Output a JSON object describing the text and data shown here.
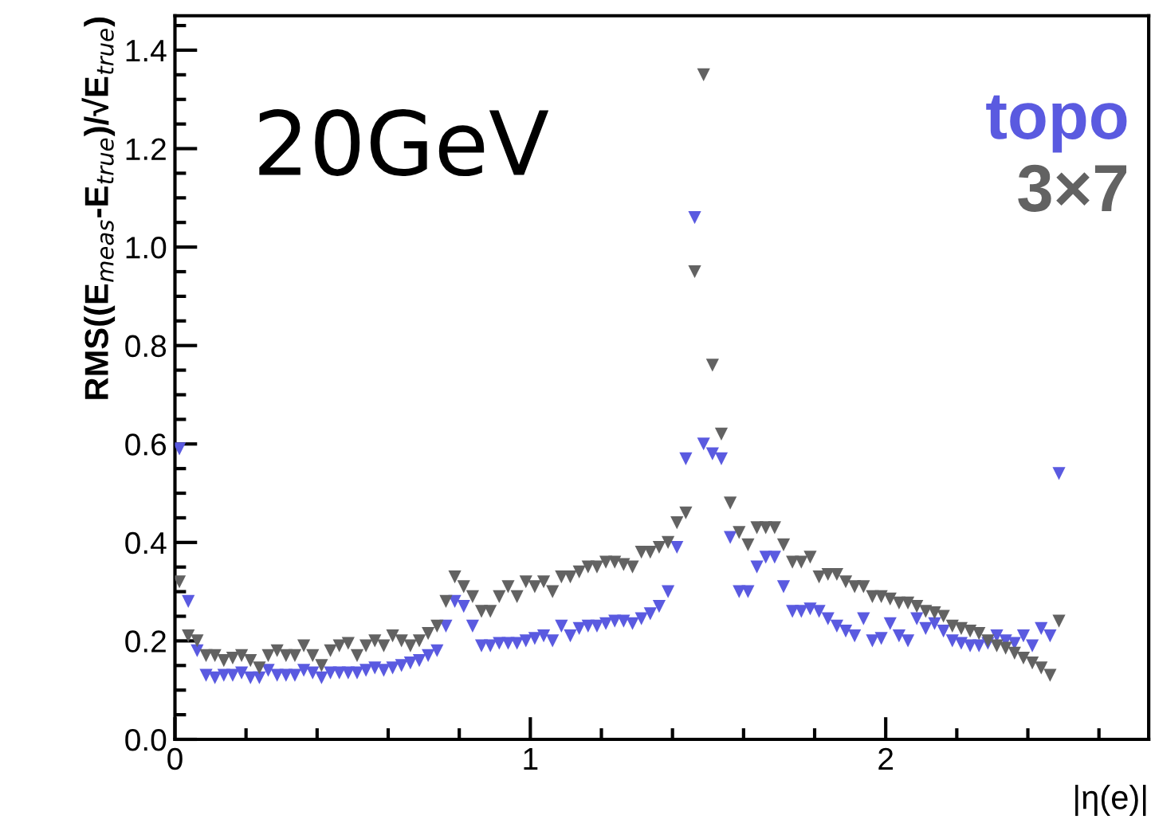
{
  "chart_data": {
    "type": "scatter",
    "marker": "triangle",
    "legend": "top right",
    "grid": false,
    "xlabel": "|η(e)|",
    "ylabel": "RMS((E$_{meas}$-E$_{true}$)/√E$_{true}$)",
    "annotations": [
      "20GeV"
    ],
    "xlim": [
      0,
      2.74
    ],
    "ylim": [
      0,
      1.47
    ],
    "xticks": [
      0,
      1,
      2
    ],
    "yticks": [
      {
        "value": 0,
        "label": "0.0"
      },
      {
        "value": 0.2,
        "label": "0.2"
      },
      {
        "value": 0.4,
        "label": "0.4"
      },
      {
        "value": 0.6,
        "label": "0.6"
      },
      {
        "value": 0.8,
        "label": "0.8"
      },
      {
        "value": 1.0,
        "label": "1.0"
      },
      {
        "value": 1.2,
        "label": "1.2"
      },
      {
        "value": 1.4,
        "label": "1.4"
      }
    ],
    "x": [
      0.0125,
      0.0375,
      0.0625,
      0.0875,
      0.1125,
      0.1375,
      0.1625,
      0.1875,
      0.2125,
      0.2375,
      0.2625,
      0.2875,
      0.3125,
      0.3375,
      0.3625,
      0.3875,
      0.4125,
      0.4375,
      0.4625,
      0.4875,
      0.5125,
      0.5375,
      0.5625,
      0.5875,
      0.6125,
      0.6375,
      0.6625,
      0.6875,
      0.7125,
      0.7375,
      0.7625,
      0.7875,
      0.8125,
      0.8375,
      0.8625,
      0.8875,
      0.9125,
      0.9375,
      0.9625,
      0.9875,
      1.0125,
      1.0375,
      1.0625,
      1.0875,
      1.1125,
      1.1375,
      1.1625,
      1.1875,
      1.2125,
      1.2375,
      1.2625,
      1.2875,
      1.3125,
      1.3375,
      1.3625,
      1.3875,
      1.4125,
      1.4375,
      1.4625,
      1.4875,
      1.5125,
      1.5375,
      1.5625,
      1.5875,
      1.6125,
      1.6375,
      1.6625,
      1.6875,
      1.7125,
      1.7375,
      1.7625,
      1.7875,
      1.8125,
      1.8375,
      1.8625,
      1.8875,
      1.9125,
      1.9375,
      1.9625,
      1.9875,
      2.0125,
      2.0375,
      2.0625,
      2.0875,
      2.1125,
      2.1375,
      2.1625,
      2.1875,
      2.2125,
      2.2375,
      2.2625,
      2.2875,
      2.3125,
      2.3375,
      2.3625,
      2.3875,
      2.4125,
      2.4375,
      2.4625,
      2.4875
    ],
    "series": [
      {
        "name": "topo",
        "color": "#5a5ae0",
        "values": [
          0.59,
          0.28,
          0.18,
          0.13,
          0.125,
          0.13,
          0.13,
          0.135,
          0.125,
          0.125,
          0.14,
          0.13,
          0.13,
          0.13,
          0.14,
          0.135,
          0.125,
          0.135,
          0.135,
          0.135,
          0.135,
          0.14,
          0.145,
          0.14,
          0.145,
          0.15,
          0.155,
          0.16,
          0.17,
          0.18,
          0.23,
          0.28,
          0.27,
          0.23,
          0.19,
          0.19,
          0.195,
          0.195,
          0.195,
          0.2,
          0.205,
          0.21,
          0.2,
          0.23,
          0.21,
          0.225,
          0.23,
          0.23,
          0.235,
          0.24,
          0.24,
          0.235,
          0.245,
          0.255,
          0.27,
          0.3,
          0.39,
          0.57,
          1.06,
          0.6,
          0.58,
          0.57,
          0.41,
          0.3,
          0.3,
          0.35,
          0.37,
          0.37,
          0.31,
          0.26,
          0.26,
          0.265,
          0.26,
          0.245,
          0.23,
          0.22,
          0.21,
          0.245,
          0.2,
          0.205,
          0.235,
          0.21,
          0.2,
          0.245,
          0.225,
          0.235,
          0.22,
          0.2,
          0.195,
          0.19,
          0.19,
          0.195,
          0.21,
          0.2,
          0.195,
          0.21,
          0.19,
          0.225,
          0.21,
          0.54
        ]
      },
      {
        "name": "3×7",
        "color": "#626262",
        "values": [
          0.32,
          0.21,
          0.2,
          0.17,
          0.17,
          0.16,
          0.165,
          0.17,
          0.16,
          0.145,
          0.17,
          0.18,
          0.17,
          0.17,
          0.19,
          0.17,
          0.15,
          0.18,
          0.19,
          0.195,
          0.17,
          0.19,
          0.2,
          0.19,
          0.21,
          0.2,
          0.19,
          0.2,
          0.215,
          0.23,
          0.28,
          0.33,
          0.31,
          0.29,
          0.26,
          0.26,
          0.29,
          0.31,
          0.29,
          0.32,
          0.31,
          0.32,
          0.3,
          0.33,
          0.33,
          0.34,
          0.35,
          0.35,
          0.36,
          0.36,
          0.355,
          0.35,
          0.38,
          0.38,
          0.39,
          0.4,
          0.44,
          0.46,
          0.95,
          1.35,
          0.76,
          0.62,
          0.48,
          0.42,
          0.395,
          0.43,
          0.43,
          0.43,
          0.395,
          0.36,
          0.36,
          0.37,
          0.33,
          0.335,
          0.335,
          0.32,
          0.31,
          0.31,
          0.29,
          0.29,
          0.285,
          0.277,
          0.277,
          0.27,
          0.26,
          0.257,
          0.25,
          0.23,
          0.225,
          0.22,
          0.215,
          0.2,
          0.19,
          0.185,
          0.175,
          0.165,
          0.155,
          0.145,
          0.13,
          0.24
        ]
      }
    ]
  }
}
